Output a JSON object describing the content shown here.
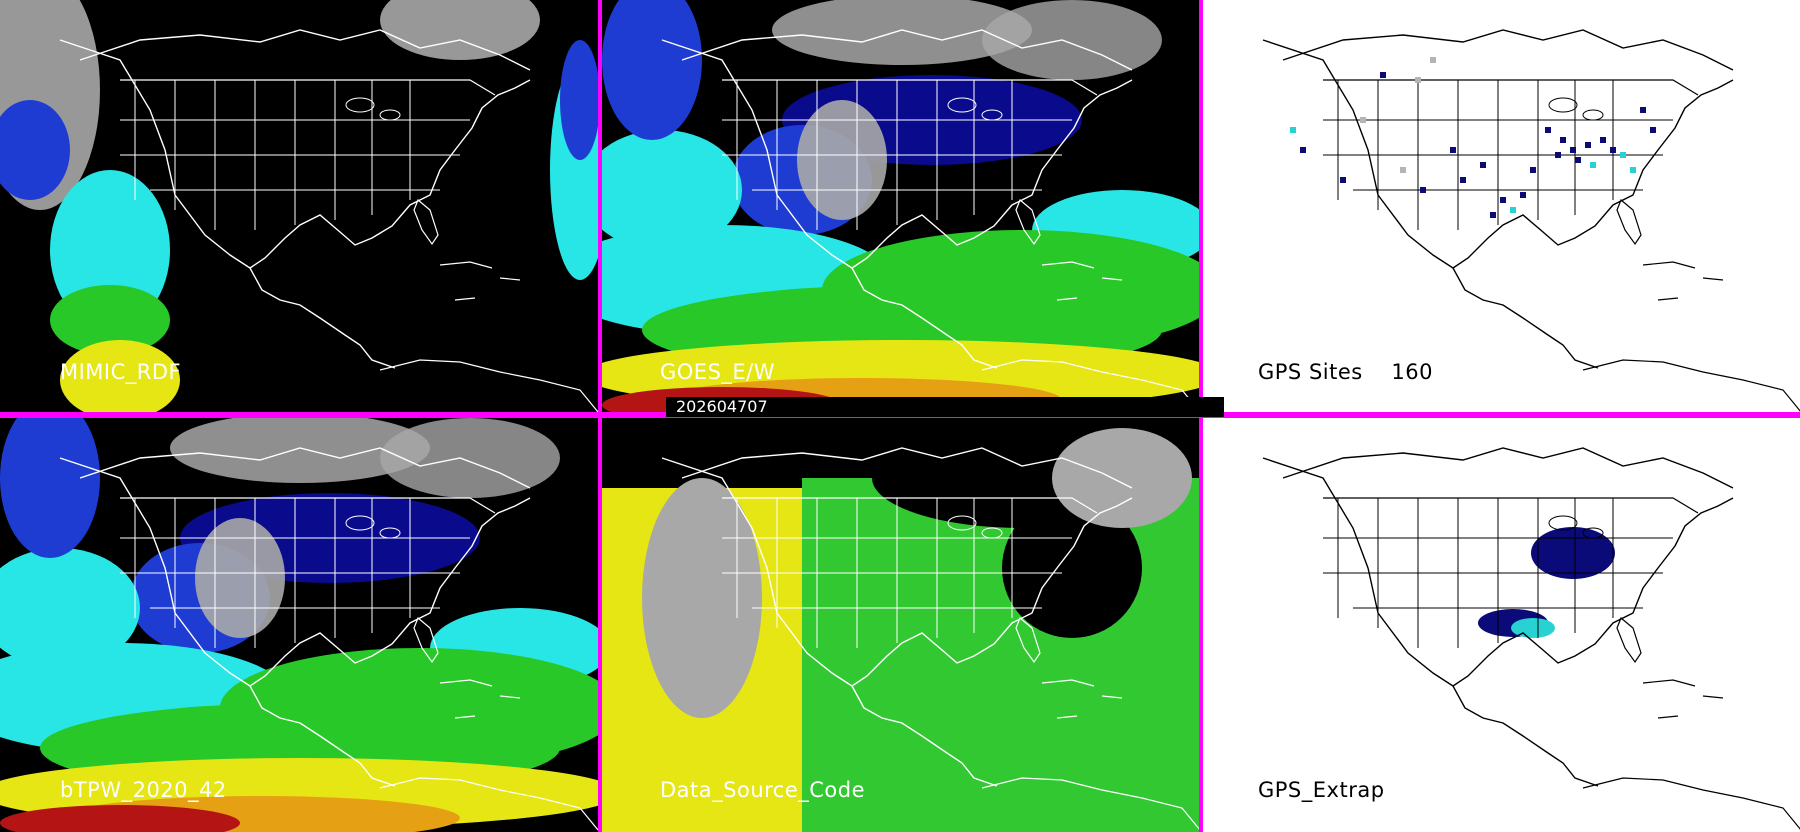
{
  "panels": [
    {
      "id": "p1",
      "label": "MIMIC_RDF",
      "theme": "dark",
      "kind": "mimic"
    },
    {
      "id": "p2",
      "label": "GOES_E/W",
      "theme": "dark",
      "kind": "goes"
    },
    {
      "id": "p3",
      "label": "GPS Sites    160",
      "theme": "light",
      "kind": "gps"
    },
    {
      "id": "p4",
      "label": "bTPW_2020_42",
      "theme": "dark",
      "kind": "btpw"
    },
    {
      "id": "p5",
      "label": "Data_Source_Code",
      "theme": "dark",
      "kind": "dsc"
    },
    {
      "id": "p6",
      "label": "GPS_Extrap",
      "theme": "light",
      "kind": "extrap"
    }
  ],
  "timestamp": "202604707",
  "colors": {
    "divider": "#ff00ff",
    "ocean_dark": "#000000",
    "land_outline": "#ffffff",
    "gray_cloud": "#a8a8a8",
    "tpw_navy": "#0a0a8c",
    "tpw_blue": "#1e3cd2",
    "tpw_cyan": "#28e6e6",
    "tpw_green": "#28c828",
    "tpw_yellow": "#e6e614",
    "tpw_orange": "#e6a014",
    "tpw_red": "#b41414",
    "source_yellow": "#e6e614",
    "source_green": "#32c832",
    "map_light_bg": "#ffffff",
    "outline_dark": "#000000",
    "site_navy": "#0a0a78",
    "site_cyan": "#28d2d2",
    "site_gray": "#b4b4b4"
  }
}
